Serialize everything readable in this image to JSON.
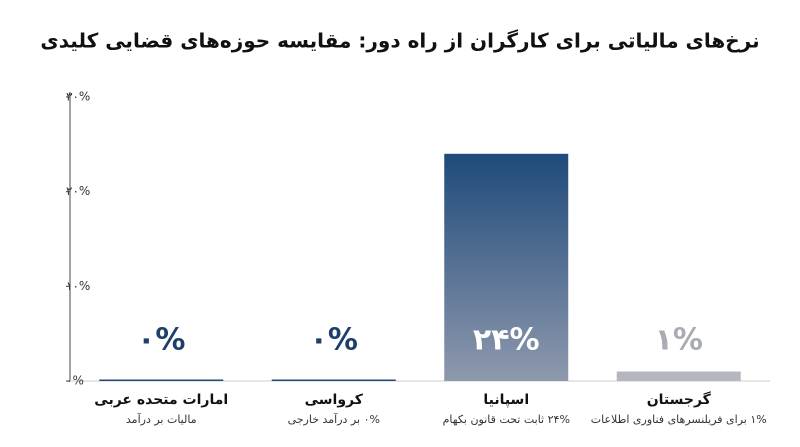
{
  "chart_data": {
    "type": "bar",
    "title": "نرخ‌های مالیاتی برای کارگران از راه دور: مقایسه حوزه‌های قضایی کلیدی",
    "categories": [
      "امارات متحده عربی",
      "کرواسی",
      "اسپانیا",
      "گرجستان"
    ],
    "category_notes": [
      "مالیات بر درآمد",
      "۰% بر درآمد خارجی",
      "۲۴% ثابت تحت قانون بکهام",
      "۱% برای فریلنسرهای فناوری اطلاعات"
    ],
    "values": [
      0,
      0,
      24,
      1
    ],
    "value_labels": [
      "۰%",
      "۰%",
      "۲۴%",
      "۱%"
    ],
    "colors": [
      "#1f4a7a",
      "#1f4a7a",
      "#1f4a7a",
      "#b4b7bd"
    ],
    "label_colors": [
      "#1f3f6b",
      "#1f3f6b",
      "#ffffff",
      "#a9acb2"
    ],
    "ylim": [
      0,
      30
    ],
    "yticks": [
      {
        "value": 0,
        "label": "۰%"
      },
      {
        "value": 10,
        "label": "۱۰%"
      },
      {
        "value": 20,
        "label": "۲۰%"
      },
      {
        "value": 30,
        "label": "۳۰%"
      }
    ],
    "grid": false
  }
}
